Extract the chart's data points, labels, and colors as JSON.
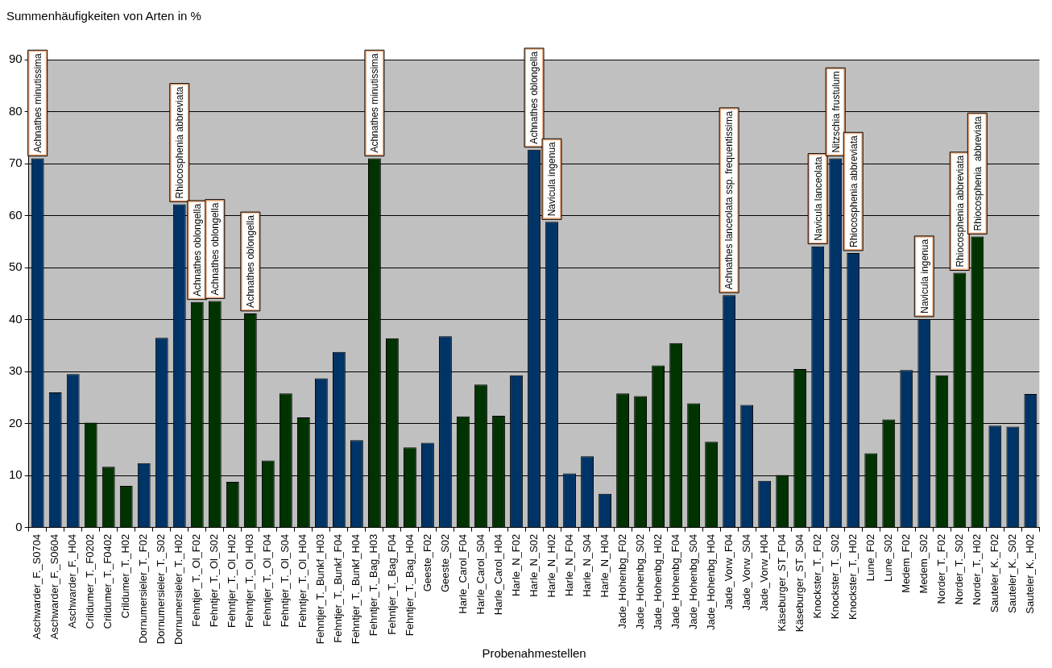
{
  "chart_data": {
    "type": "bar",
    "title": "Summenhäufigkeiten von Arten in %",
    "xlabel": "Probenahmestellen",
    "categories": [
      "Aschwarder_F._S0704",
      "Aschwarder_F._S0604",
      "Aschwarder_F._H04",
      "Crildumer_T._F0202",
      "Crildumer_T._F0402",
      "Crildumer_T._H02",
      "Dornumersieler_T._F02",
      "Dornumersieler_T._S02",
      "Dornumersieler_T._H02",
      "Fehntjer_T._Ol_F02",
      "Fehntjer_T._Ol_S02",
      "Fehntjer_T._Ol_H02",
      "Fehntjer_T._Ol_H03",
      "Fehntjer_T._Ol_F04",
      "Fehntjer_T._Ol_S04",
      "Fehntjer_T._Ol_H04",
      "Fehntjer_T._Bunkf_H03",
      "Fehntjer_T._Bunkf_F04",
      "Fehntjer_T._Bunkf_H04",
      "Fehntjer_T._Bag_H03",
      "Fehntjer_T._Bag_F04",
      "Fehntjer_T._Bag_H04",
      "Geeste_F02",
      "Geeste_S02",
      "Harle_Carol_F04",
      "Harle_Carol_S04",
      "Harle_Carol_H04",
      "Harle_N_F02",
      "Harle_N_S02",
      "Harle_N_H02",
      "Harle_N_F04",
      "Harle_N_S04",
      "Harle_N_H04",
      "Jade_Hohenbg_F02",
      "Jade_Hohenbg_S02",
      "Jade_Hohenbg_H02",
      "Jade_Hohenbg_F04",
      "Jade_Hohenbg_S04",
      "Jade_Hohenbg_H04",
      "Jade_Vorw_F04",
      "Jade_Vorw_S04",
      "Jade_Vorw_H04",
      "Käseburger_ST_F04",
      "Käseburger_ST_S04",
      "Knockster_T._F02",
      "Knockster_T._S02",
      "Knockster_T._H02",
      "Lune_F02",
      "Lune_S02",
      "Medem_F02",
      "Medem_S02",
      "Norder_T._F02",
      "Norder_T._S02",
      "Norder_T._H02",
      "Sauteler_K._F02",
      "Sauteler_K._S02",
      "Sauteler_K._H02"
    ],
    "values": [
      71,
      26,
      29.5,
      20.2,
      11.7,
      8,
      12.4,
      36.5,
      62.2,
      43.4,
      43.6,
      8.8,
      41.2,
      12.9,
      25.8,
      21.2,
      28.7,
      33.8,
      16.8,
      71,
      36.4,
      15.4,
      16.3,
      36.8,
      21.4,
      27.5,
      21.5,
      29.3,
      72.7,
      58.8,
      10.4,
      13.7,
      6.5,
      25.8,
      25.3,
      31.2,
      35.5,
      23.9,
      16.5,
      44.7,
      23.6,
      9,
      10.1,
      30.5,
      54.1,
      71,
      52.8,
      14.3,
      20.8,
      30.3,
      40.1,
      29.3,
      49,
      56,
      19.6,
      19.4,
      25.7
    ],
    "colors": [
      "#003366",
      "#003366",
      "#003366",
      "#003300",
      "#003300",
      "#003300",
      "#003366",
      "#003366",
      "#003366",
      "#003300",
      "#003300",
      "#003300",
      "#003300",
      "#003300",
      "#003300",
      "#003300",
      "#003366",
      "#003366",
      "#003366",
      "#003300",
      "#003300",
      "#003300",
      "#003366",
      "#003366",
      "#003300",
      "#003300",
      "#003300",
      "#003366",
      "#003366",
      "#003366",
      "#003366",
      "#003366",
      "#003366",
      "#003300",
      "#003300",
      "#003300",
      "#003300",
      "#003300",
      "#003300",
      "#003366",
      "#003366",
      "#003366",
      "#003300",
      "#003300",
      "#003366",
      "#003366",
      "#003366",
      "#003300",
      "#003300",
      "#003366",
      "#003366",
      "#003300",
      "#003300",
      "#003300",
      "#003366",
      "#003366",
      "#003366"
    ],
    "ylim": [
      0,
      90
    ],
    "yticks": [
      0,
      10,
      20,
      30,
      40,
      50,
      60,
      70,
      80,
      90
    ],
    "grid": "y",
    "legend": false,
    "annotations": [
      {
        "text": "Achnathes minutissima",
        "x": "Aschwarder_F._S0704",
        "y": 71
      },
      {
        "text": "Rhiocosphenia abbreviata",
        "x": "Dornumersieler_T._H02",
        "y": 62.2
      },
      {
        "text": "Achnathes oblongella",
        "x": "Fehntjer_T._Ol_F02",
        "y": 43.4
      },
      {
        "text": "Achnathes oblongella",
        "x": "Fehntjer_T._Ol_S02",
        "y": 43.6
      },
      {
        "text": "Achnathes oblongella",
        "x": "Fehntjer_T._Ol_H03",
        "y": 41.2
      },
      {
        "text": "Achnathes minutissima",
        "x": "Fehntjer_T._Bag_H03",
        "y": 71
      },
      {
        "text": "Achnathes oblongella",
        "x": "Harle_N_S02",
        "y": 72.7
      },
      {
        "text": "Navicula ingenua",
        "x": "Harle_N_H02",
        "y": 58.8
      },
      {
        "text": "Achnathes lanceolata ssp. frequentissima",
        "x": "Jade_Vorw_F04",
        "y": 44.7
      },
      {
        "text": "Navicula lanceolata",
        "x": "Knockster_T._F02",
        "y": 54.1
      },
      {
        "text": "Nitzschia frustulum",
        "x": "Knockster_T._S02",
        "y": 71
      },
      {
        "text": "Rhiocosphenia abbreviata",
        "x": "Knockster_T._H02",
        "y": 52.8
      },
      {
        "text": "Navicula ingenua",
        "x": "Medem_S02",
        "y": 40.1
      },
      {
        "text": "Rhiocosphenia abbreviata",
        "x": "Norder_T._S02",
        "y": 49
      },
      {
        "text": "Rhiocosphenia  abbreviata",
        "x": "Norder_T._H02",
        "y": 56
      }
    ]
  }
}
